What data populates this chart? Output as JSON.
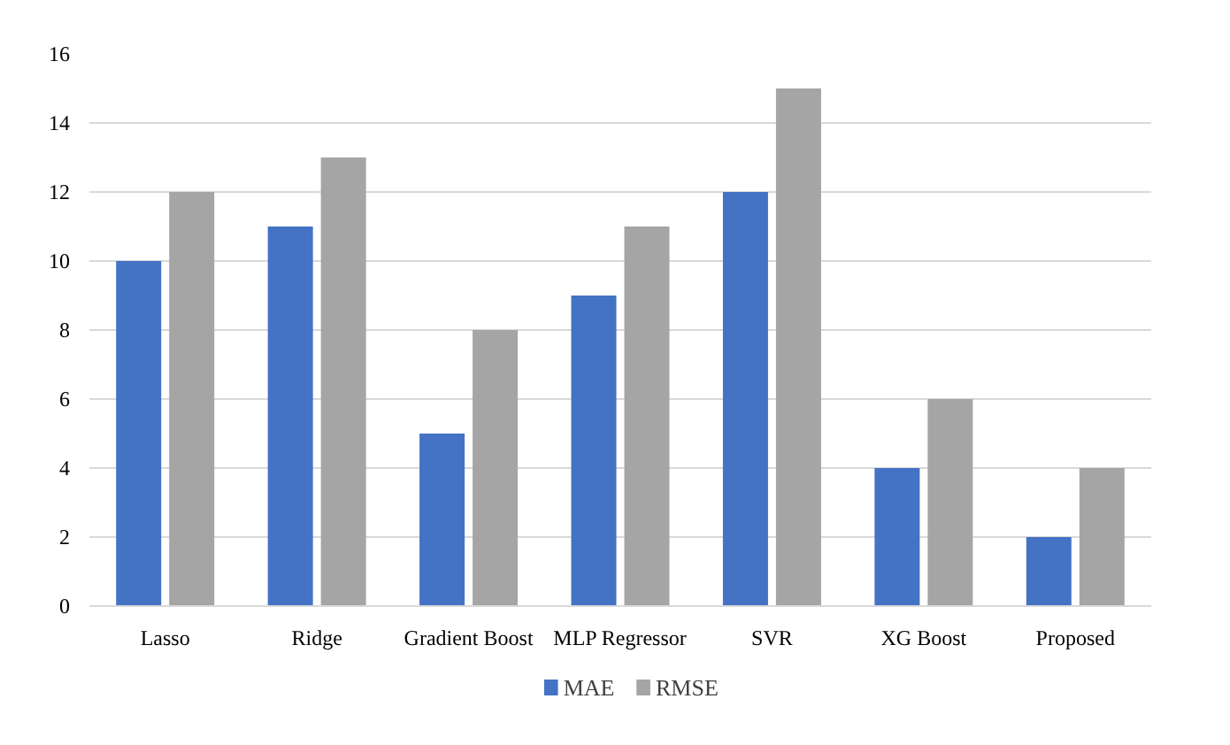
{
  "chart_data": {
    "type": "bar",
    "categories": [
      "Lasso",
      "Ridge",
      "Gradient Boost",
      "MLP Regressor",
      "SVR",
      "XG Boost",
      "Proposed"
    ],
    "series": [
      {
        "name": "MAE",
        "color": "#4472c4",
        "values": [
          10,
          11,
          5,
          9,
          12,
          4,
          2
        ]
      },
      {
        "name": "RMSE",
        "color": "#a5a5a5",
        "values": [
          12,
          13,
          8,
          11,
          15,
          6,
          4
        ]
      }
    ],
    "ylim": [
      0,
      16
    ],
    "yticks": [
      0,
      2,
      4,
      6,
      8,
      10,
      12,
      14,
      16
    ],
    "grid": "y",
    "legend": "bottom"
  }
}
